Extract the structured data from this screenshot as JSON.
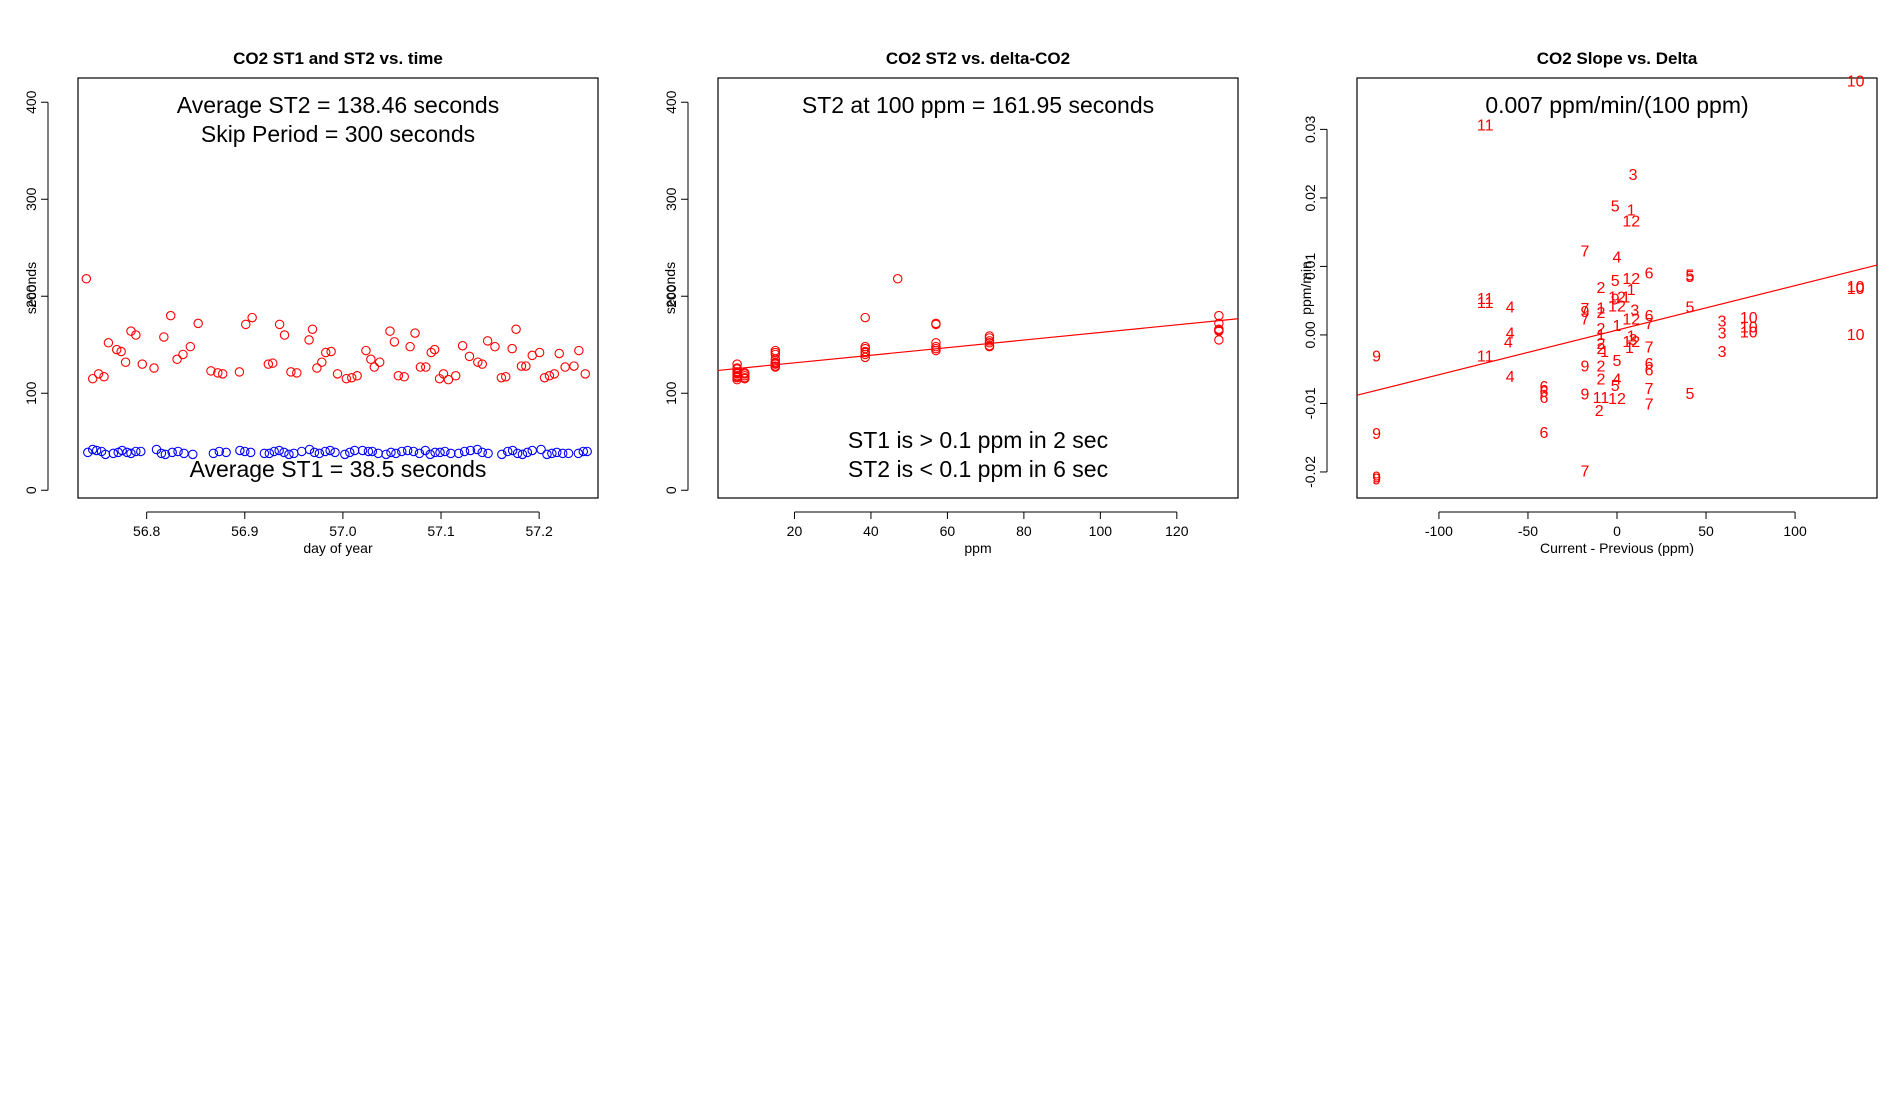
{
  "chart_data": [
    {
      "type": "scatter",
      "title": "CO2 ST1 and ST2 vs. time",
      "xlabel": "day of year",
      "ylabel": "seconds",
      "xlim": [
        56.73,
        57.26
      ],
      "ylim": [
        -8,
        425
      ],
      "xticks": [
        56.8,
        56.9,
        57.0,
        57.1,
        57.2
      ],
      "xtick_labels": [
        "56.8",
        "56.9",
        "57.0",
        "57.1",
        "57.2"
      ],
      "yticks": [
        0,
        100,
        200,
        300,
        400
      ],
      "ytick_labels": [
        "0",
        "100",
        "200",
        "300",
        "400"
      ],
      "annotations": [
        "Average ST2 =  138.46  seconds",
        "Skip Period =  300  seconds",
        "Average ST1 =  38.5  seconds"
      ],
      "series": [
        {
          "name": "ST2",
          "color": "#ff0000",
          "marker": "circle",
          "x": [
            56.7385,
            56.745,
            56.751,
            56.7565,
            56.761,
            56.7695,
            56.774,
            56.7785,
            56.784,
            56.789,
            56.7955,
            56.8075,
            56.8175,
            56.8245,
            56.831,
            56.837,
            56.8445,
            56.8525,
            56.8655,
            56.8725,
            56.8775,
            56.8945,
            56.901,
            56.9075,
            56.924,
            56.9285,
            56.9355,
            56.9405,
            56.947,
            56.953,
            56.9655,
            56.969,
            56.9735,
            56.9785,
            56.9825,
            56.988,
            56.9945,
            57.0035,
            57.009,
            57.0145,
            57.0235,
            57.0285,
            57.032,
            57.0375,
            57.048,
            57.0525,
            57.0565,
            57.0625,
            57.0685,
            57.0735,
            57.079,
            57.0845,
            57.09,
            57.0935,
            57.0985,
            57.1025,
            57.1075,
            57.115,
            57.122,
            57.129,
            57.1375,
            57.142,
            57.1475,
            57.155,
            57.1615,
            57.166,
            57.1725,
            57.1765,
            57.182,
            57.1865,
            57.193,
            57.2005,
            57.2055,
            57.2105,
            57.2155,
            57.2205,
            57.2265,
            57.2355,
            57.2405,
            57.247
          ],
          "y": [
            218,
            115,
            120,
            117,
            152,
            145,
            143,
            132,
            164,
            160,
            130,
            126,
            158,
            180,
            135,
            140,
            148,
            172,
            123,
            121,
            120,
            122,
            171,
            178,
            130,
            131,
            171,
            160,
            122,
            121,
            155,
            166,
            126,
            132,
            142,
            143,
            120,
            115,
            116,
            118,
            144,
            135,
            127,
            132,
            164,
            153,
            118,
            117,
            148,
            162,
            127,
            127,
            142,
            145,
            115,
            120,
            114,
            118,
            149,
            138,
            132,
            130,
            154,
            148,
            116,
            117,
            146,
            166,
            128,
            128,
            139,
            142,
            116,
            118,
            120,
            141,
            127,
            128,
            144,
            120
          ]
        },
        {
          "name": "ST1",
          "color": "#0000ff",
          "marker": "circle",
          "x": [
            56.74,
            56.745,
            56.749,
            56.754,
            56.758,
            56.766,
            56.771,
            56.775,
            56.78,
            56.784,
            56.789,
            56.794,
            56.81,
            56.815,
            56.819,
            56.826,
            56.832,
            56.838,
            56.847,
            56.868,
            56.874,
            56.881,
            56.895,
            56.9,
            56.906,
            56.92,
            56.925,
            56.93,
            56.935,
            56.94,
            56.945,
            56.95,
            56.958,
            56.966,
            56.971,
            56.976,
            56.982,
            56.987,
            56.992,
            57.002,
            57.007,
            57.012,
            57.02,
            57.026,
            57.03,
            57.036,
            57.044,
            57.049,
            57.054,
            57.06,
            57.066,
            57.072,
            57.078,
            57.084,
            57.089,
            57.094,
            57.099,
            57.104,
            57.11,
            57.118,
            57.124,
            57.13,
            57.137,
            57.142,
            57.148,
            57.162,
            57.168,
            57.173,
            57.178,
            57.183,
            57.188,
            57.193,
            57.202,
            57.208,
            57.213,
            57.218,
            57.224,
            57.23,
            57.24,
            57.245,
            57.249
          ],
          "y": [
            39,
            42,
            41,
            40,
            37,
            38,
            39,
            41,
            39,
            38,
            40,
            40,
            42,
            38,
            37,
            39,
            40,
            38,
            37,
            38,
            40,
            39,
            41,
            40,
            39,
            38,
            38,
            40,
            41,
            39,
            37,
            38,
            40,
            42,
            39,
            38,
            40,
            41,
            39,
            37,
            39,
            41,
            41,
            40,
            40,
            38,
            37,
            39,
            38,
            40,
            41,
            40,
            38,
            41,
            37,
            39,
            39,
            40,
            38,
            38,
            40,
            41,
            42,
            39,
            38,
            37,
            40,
            41,
            38,
            37,
            39,
            41,
            42,
            37,
            38,
            39,
            38,
            38,
            38,
            40,
            40
          ]
        }
      ]
    },
    {
      "type": "scatter",
      "title": "CO2 ST2 vs. delta-CO2",
      "xlabel": "ppm",
      "ylabel": "seconds",
      "xlim": [
        0,
        136
      ],
      "ylim": [
        -8,
        425
      ],
      "xticks": [
        20,
        40,
        60,
        80,
        100,
        120
      ],
      "xtick_labels": [
        "20",
        "40",
        "60",
        "80",
        "100",
        "120"
      ],
      "yticks": [
        0,
        100,
        200,
        300,
        400
      ],
      "ytick_labels": [
        "0",
        "100",
        "200",
        "300",
        "400"
      ],
      "annotations": [
        "ST2 at 100 ppm =  161.95  seconds",
        "ST1 is > 0.1 ppm in 2 sec",
        "ST2 is < 0.1 ppm in 6 sec"
      ],
      "fit_line": {
        "x": [
          0,
          136
        ],
        "y": [
          123.5,
          176.8
        ],
        "color": "#ff0000"
      },
      "series": [
        {
          "name": "ST2",
          "color": "#ff0000",
          "marker": "circle",
          "x": [
            5,
            5,
            5,
            5,
            5,
            5,
            5,
            5,
            5,
            5,
            7,
            7,
            7,
            7,
            7,
            15,
            15,
            15,
            15,
            15,
            15,
            15,
            15,
            15,
            38.5,
            38.5,
            38.5,
            38.5,
            38.5,
            38.5,
            38.5,
            47,
            57,
            57,
            57,
            57,
            57,
            57,
            71,
            71,
            71,
            71,
            71,
            71,
            131,
            131,
            131,
            131,
            131,
            131
          ],
          "y": [
            114,
            116,
            117,
            118,
            120,
            121,
            122,
            125,
            126,
            130,
            115,
            116,
            118,
            120,
            121,
            128,
            127,
            130,
            131,
            132,
            135,
            140,
            142,
            144,
            137,
            140,
            143,
            146,
            148,
            178,
            142,
            218,
            144,
            146,
            148,
            152,
            171,
            172,
            149,
            152,
            154,
            157,
            159,
            148,
            155,
            164,
            165,
            166,
            172,
            180
          ]
        }
      ]
    },
    {
      "type": "scatter",
      "title": "CO2 Slope vs. Delta",
      "xlabel": "Current - Previous (ppm)",
      "ylabel": "ppm/min",
      "xlim": [
        -146,
        146
      ],
      "ylim": [
        -0.0238,
        0.0375
      ],
      "xticks": [
        -100,
        -50,
        0,
        50,
        100
      ],
      "xtick_labels": [
        "-100",
        "-50",
        "0",
        "50",
        "100"
      ],
      "yticks": [
        -0.02,
        -0.01,
        0.0,
        0.01,
        0.02,
        0.03
      ],
      "ytick_labels": [
        "-0.02",
        "-0.01",
        "0.00",
        "0.01",
        "0.02",
        "0.03"
      ],
      "annotations": [
        "0.007  ppm/min/(100 ppm)"
      ],
      "fit_line": {
        "x": [
          -146,
          146
        ],
        "y": [
          -0.0088,
          0.0102
        ],
        "color": "#ff0000"
      },
      "points": [
        {
          "label": "10",
          "x": 134,
          "y": 0.0369
        },
        {
          "label": "11",
          "x": -74,
          "y": 0.0305
        },
        {
          "label": "3",
          "x": 9,
          "y": 0.0233
        },
        {
          "label": "5",
          "x": -1,
          "y": 0.0187
        },
        {
          "label": "1",
          "x": 8,
          "y": 0.0181
        },
        {
          "label": "12",
          "x": 8,
          "y": 0.0165
        },
        {
          "label": "7",
          "x": -18,
          "y": 0.0121
        },
        {
          "label": "4",
          "x": 0,
          "y": 0.0112
        },
        {
          "label": "6",
          "x": 18,
          "y": 0.0089
        },
        {
          "label": "5",
          "x": 41,
          "y": 0.0086
        },
        {
          "label": "5",
          "x": 41,
          "y": 0.0084
        },
        {
          "label": "5",
          "x": -1,
          "y": 0.0078
        },
        {
          "label": "12",
          "x": 8,
          "y": 0.0081
        },
        {
          "label": "2",
          "x": -9,
          "y": 0.0068
        },
        {
          "label": "1",
          "x": 8,
          "y": 0.0065
        },
        {
          "label": "10",
          "x": 134,
          "y": 0.0069
        },
        {
          "label": "10",
          "x": 134,
          "y": 0.0066
        },
        {
          "label": "11",
          "x": -74,
          "y": 0.0052
        },
        {
          "label": "11",
          "x": -74,
          "y": 0.0046
        },
        {
          "label": "12",
          "x": 0,
          "y": 0.0054
        },
        {
          "label": "1",
          "x": 5,
          "y": 0.0054
        },
        {
          "label": "9",
          "x": -1,
          "y": 0.0051
        },
        {
          "label": "4",
          "x": -60,
          "y": 0.0039
        },
        {
          "label": "7",
          "x": -18,
          "y": 0.0037
        },
        {
          "label": "9",
          "x": -18,
          "y": 0.0033
        },
        {
          "label": "7",
          "x": -18,
          "y": 0.0022
        },
        {
          "label": "1",
          "x": -9,
          "y": 0.0038
        },
        {
          "label": "2",
          "x": -9,
          "y": 0.0031
        },
        {
          "label": "3",
          "x": 10,
          "y": 0.0035
        },
        {
          "label": "5",
          "x": 41,
          "y": 0.0039
        },
        {
          "label": "12",
          "x": 0,
          "y": 0.0041
        },
        {
          "label": "12",
          "x": 8,
          "y": 0.0022
        },
        {
          "label": "6",
          "x": 18,
          "y": 0.0027
        },
        {
          "label": "7",
          "x": 18,
          "y": 0.0015
        },
        {
          "label": "3",
          "x": 59,
          "y": 0.0019
        },
        {
          "label": "10",
          "x": 74,
          "y": 0.0024
        },
        {
          "label": "10",
          "x": 74,
          "y": 0.001
        },
        {
          "label": "10",
          "x": 74,
          "y": 0.0003
        },
        {
          "label": "3",
          "x": 59,
          "y": 0.0001
        },
        {
          "label": "3",
          "x": 59,
          "y": -0.0026
        },
        {
          "label": "10",
          "x": 134,
          "y": -0.0001
        },
        {
          "label": "1",
          "x": 0,
          "y": 0.0012
        },
        {
          "label": "2",
          "x": -9,
          "y": 0.0008
        },
        {
          "label": "1",
          "x": -9,
          "y": -0.0001
        },
        {
          "label": "4",
          "x": -60,
          "y": 0.0001
        },
        {
          "label": "4",
          "x": -61,
          "y": -0.0012
        },
        {
          "label": "1",
          "x": 8,
          "y": -0.0003
        },
        {
          "label": "3",
          "x": 9,
          "y": -0.0008
        },
        {
          "label": "12",
          "x": 8,
          "y": -0.0011
        },
        {
          "label": "1",
          "x": 7,
          "y": -0.002
        },
        {
          "label": "7",
          "x": 18,
          "y": -0.0019
        },
        {
          "label": "2",
          "x": -9,
          "y": -0.0014
        },
        {
          "label": "2",
          "x": -9,
          "y": -0.0021
        },
        {
          "label": "1",
          "x": -7,
          "y": -0.0026
        },
        {
          "label": "9",
          "x": -135,
          "y": -0.0032
        },
        {
          "label": "11",
          "x": -74,
          "y": -0.0032
        },
        {
          "label": "5",
          "x": 0,
          "y": -0.0039
        },
        {
          "label": "6",
          "x": 18,
          "y": -0.0043
        },
        {
          "label": "6",
          "x": 18,
          "y": -0.0053
        },
        {
          "label": "2",
          "x": -9,
          "y": -0.0047
        },
        {
          "label": "9",
          "x": -18,
          "y": -0.0047
        },
        {
          "label": "4",
          "x": -60,
          "y": -0.0062
        },
        {
          "label": "2",
          "x": -9,
          "y": -0.0066
        },
        {
          "label": "4",
          "x": 0,
          "y": -0.0066
        },
        {
          "label": "5",
          "x": -1,
          "y": -0.0075
        },
        {
          "label": "6",
          "x": -41,
          "y": -0.0077
        },
        {
          "label": "6",
          "x": -41,
          "y": -0.0084
        },
        {
          "label": "6",
          "x": -41,
          "y": -0.0093
        },
        {
          "label": "7",
          "x": 18,
          "y": -0.008
        },
        {
          "label": "5",
          "x": 41,
          "y": -0.0087
        },
        {
          "label": "9",
          "x": -18,
          "y": -0.0088
        },
        {
          "label": "11",
          "x": -9,
          "y": -0.0093
        },
        {
          "label": "12",
          "x": 0,
          "y": -0.0094
        },
        {
          "label": "7",
          "x": 18,
          "y": -0.0102
        },
        {
          "label": "2",
          "x": -10,
          "y": -0.0112
        },
        {
          "label": "6",
          "x": -41,
          "y": -0.0144
        },
        {
          "label": "9",
          "x": -135,
          "y": -0.0145
        },
        {
          "label": "7",
          "x": -18,
          "y": -0.02
        },
        {
          "label": "9",
          "x": -135,
          "y": -0.0209
        },
        {
          "label": "9",
          "x": -135,
          "y": -0.0212
        }
      ]
    }
  ]
}
